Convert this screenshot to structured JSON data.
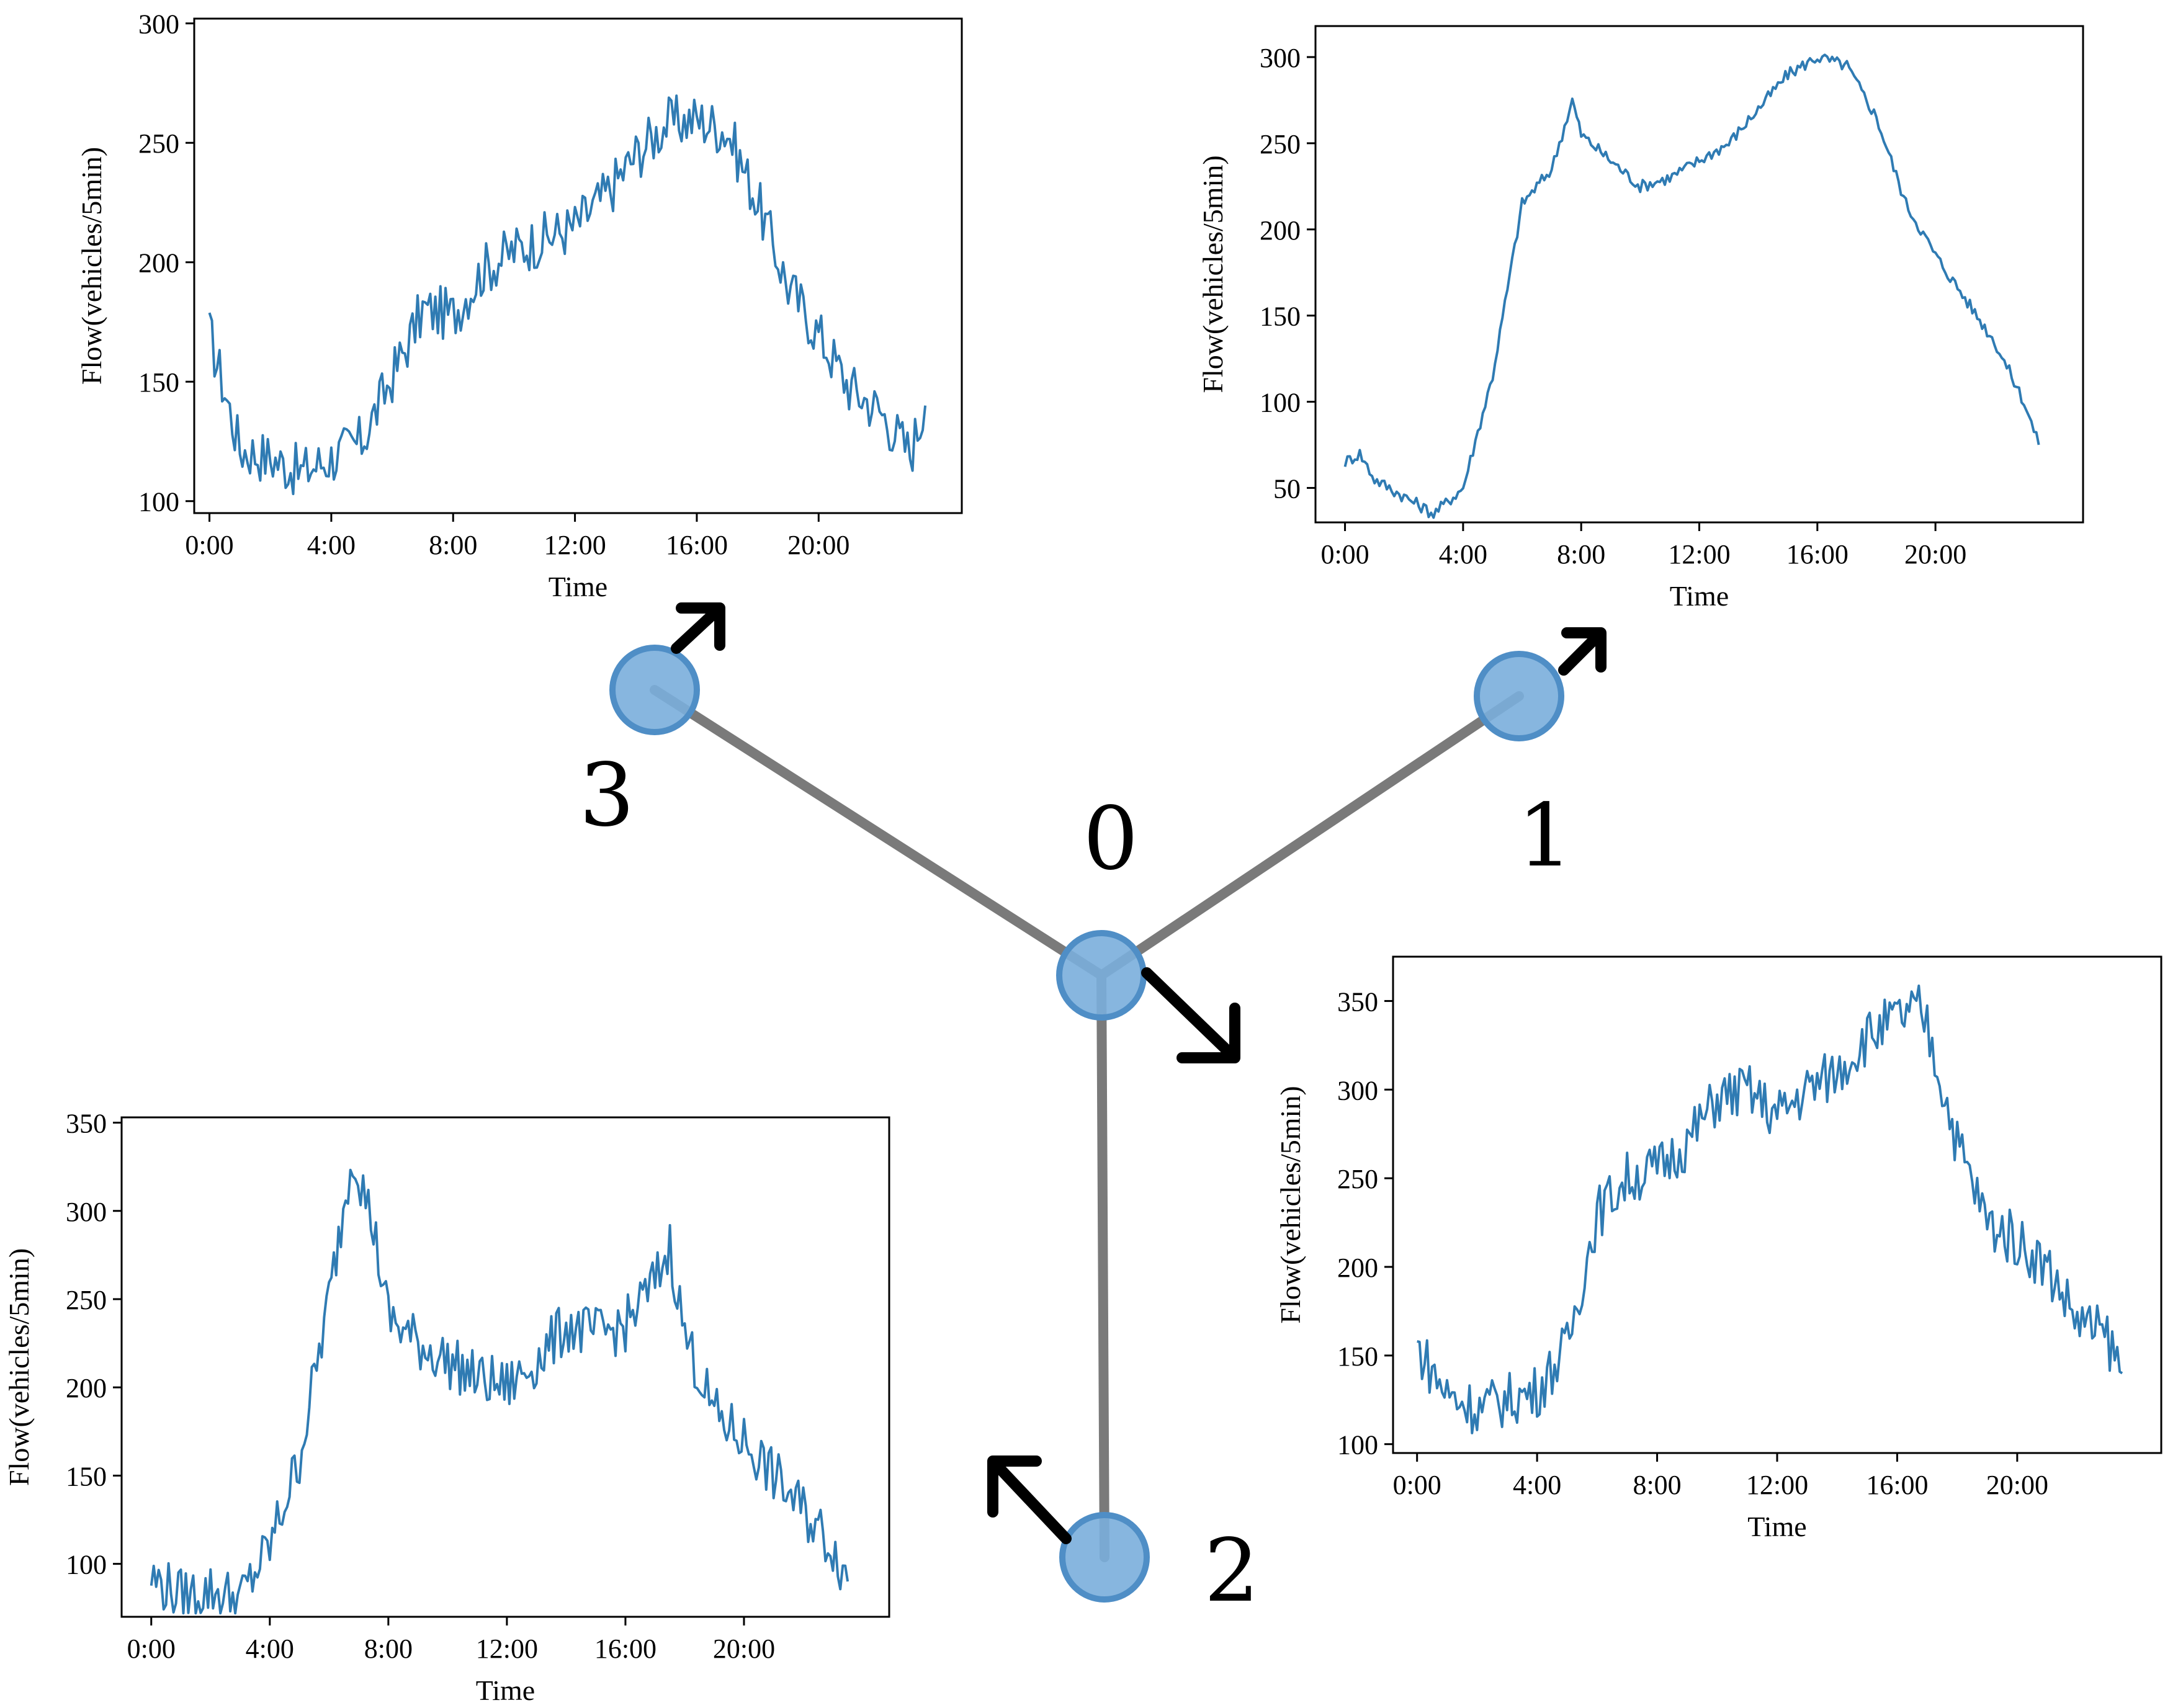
{
  "colors": {
    "line": "#2f7bb3",
    "node_fill": "#7aaedc",
    "node_stroke": "#4f8ec6",
    "edge": "#7a7a7a",
    "arrow": "#000000",
    "frame": "#000000"
  },
  "graph": {
    "nodes": [
      {
        "id": "0",
        "label": "0"
      },
      {
        "id": "1",
        "label": "1"
      },
      {
        "id": "2",
        "label": "2"
      },
      {
        "id": "3",
        "label": "3"
      }
    ],
    "edges": [
      [
        "0",
        "1"
      ],
      [
        "0",
        "2"
      ],
      [
        "0",
        "3"
      ]
    ]
  },
  "chart_data": [
    {
      "type": "line",
      "node": "3",
      "xlabel": "Time",
      "ylabel": "Flow(vehicles/5min)",
      "xticks": [
        "0:00",
        "4:00",
        "8:00",
        "12:00",
        "16:00",
        "20:00"
      ],
      "xlim": [
        -0.5,
        24.7
      ],
      "ylim": [
        95,
        302
      ],
      "yticks": [
        100,
        150,
        200,
        250,
        300
      ],
      "grid": false,
      "x_hours": [
        0,
        1,
        2,
        3,
        4,
        5,
        6,
        7,
        8,
        9,
        10,
        11,
        12,
        13,
        14,
        15,
        16,
        17,
        18,
        19,
        20,
        21,
        22,
        23,
        23.5
      ],
      "y": [
        170,
        122,
        118,
        112,
        118,
        125,
        152,
        180,
        178,
        197,
        205,
        210,
        215,
        228,
        245,
        258,
        260,
        255,
        225,
        190,
        170,
        148,
        138,
        120,
        140
      ]
    },
    {
      "type": "line",
      "node": "1",
      "xlabel": "Time",
      "ylabel": "Flow(vehicles/5min)",
      "xticks": [
        "0:00",
        "4:00",
        "8:00",
        "12:00",
        "16:00",
        "20:00"
      ],
      "xlim": [
        -1.0,
        25.0
      ],
      "ylim": [
        30,
        318
      ],
      "yticks": [
        50,
        100,
        150,
        200,
        250,
        300
      ],
      "grid": false,
      "x_hours": [
        0,
        0.5,
        1,
        2,
        3,
        4,
        5,
        6,
        7,
        7.7,
        8,
        9,
        10,
        11,
        12,
        13,
        14,
        15,
        16,
        17,
        18,
        19,
        20,
        21,
        22,
        23,
        23.5
      ],
      "y": [
        65,
        70,
        55,
        45,
        35,
        50,
        115,
        215,
        235,
        275,
        255,
        240,
        225,
        230,
        240,
        250,
        270,
        290,
        300,
        295,
        265,
        215,
        185,
        160,
        135,
        100,
        75
      ]
    },
    {
      "type": "line",
      "node": "2",
      "xlabel": "Time",
      "ylabel": "Flow(vehicles/5min)",
      "xticks": [
        "0:00",
        "4:00",
        "8:00",
        "12:00",
        "16:00",
        "20:00"
      ],
      "xlim": [
        -1.0,
        24.9
      ],
      "ylim": [
        70,
        353
      ],
      "yticks": [
        100,
        150,
        200,
        250,
        300,
        350
      ],
      "grid": false,
      "x_hours": [
        0,
        1,
        2,
        3,
        4,
        5,
        6,
        6.8,
        7.5,
        8,
        9,
        10,
        11,
        12,
        13,
        14,
        15,
        16,
        17,
        17.5,
        18,
        19,
        20,
        21,
        22,
        23,
        23.5
      ],
      "y": [
        92,
        82,
        85,
        80,
        110,
        160,
        250,
        335,
        290,
        240,
        225,
        215,
        205,
        200,
        215,
        235,
        230,
        235,
        260,
        280,
        230,
        185,
        170,
        150,
        130,
        110,
        90
      ]
    },
    {
      "type": "line",
      "node": "0",
      "xlabel": "Time",
      "ylabel": "Flow(vehicles/5min)",
      "xticks": [
        "0:00",
        "4:00",
        "8:00",
        "12:00",
        "16:00",
        "20:00"
      ],
      "xlim": [
        -0.8,
        24.8
      ],
      "ylim": [
        95,
        375
      ],
      "yticks": [
        100,
        150,
        200,
        250,
        300,
        350
      ],
      "grid": false,
      "x_hours": [
        0,
        1,
        2,
        3,
        4,
        5,
        6,
        7,
        8,
        9,
        10,
        11,
        12,
        13,
        14,
        15,
        16,
        16.8,
        17,
        18,
        19,
        20,
        21,
        22,
        23,
        23.5
      ],
      "y": [
        155,
        128,
        120,
        125,
        130,
        155,
        230,
        250,
        255,
        270,
        295,
        300,
        285,
        300,
        310,
        330,
        340,
        345,
        335,
        270,
        225,
        215,
        200,
        170,
        160,
        140
      ]
    }
  ]
}
